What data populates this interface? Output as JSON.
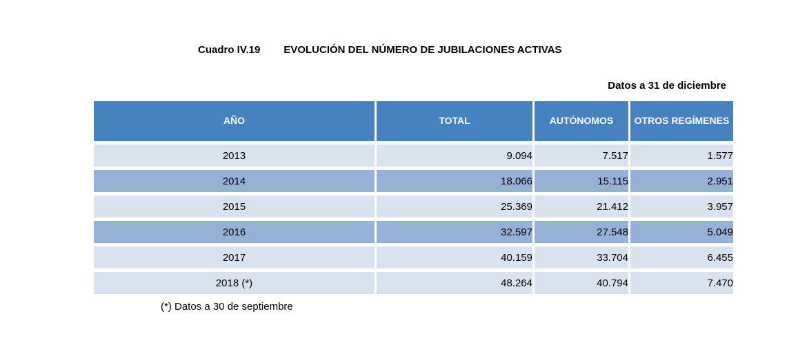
{
  "page": {
    "label": "Cuadro IV.19",
    "title": "EVOLUCIÓN DEL NÚMERO DE JUBILACIONES ACTIVAS",
    "subtitle": "Datos a 31 de diciembre",
    "footnote": "(*) Datos a 30 de septiembre"
  },
  "colors": {
    "header_bg": "#4682bf",
    "row_dark": "#95b1d6",
    "row_light": "#d9e2ef",
    "header_text": "#ffffff",
    "body_text": "#000000"
  },
  "table": {
    "columns": [
      "AÑO",
      "TOTAL",
      "AUTÓNOMOS",
      "OTROS REGÍMENES"
    ],
    "rows": [
      {
        "year": "2013",
        "total": "9.094",
        "autonomos": "7.517",
        "otros": "1.577"
      },
      {
        "year": "2014",
        "total": "18.066",
        "autonomos": "15.115",
        "otros": "2.951"
      },
      {
        "year": "2015",
        "total": "25.369",
        "autonomos": "21.412",
        "otros": "3.957"
      },
      {
        "year": "2016",
        "total": "32.597",
        "autonomos": "27.548",
        "otros": "5.049"
      },
      {
        "year": "2017",
        "total": "40.159",
        "autonomos": "33.704",
        "otros": "6.455"
      },
      {
        "year": "2018 (*)",
        "total": "48.264",
        "autonomos": "40.794",
        "otros": "7.470"
      }
    ]
  },
  "chart_data": {
    "type": "table",
    "title": "EVOLUCIÓN DEL NÚMERO DE JUBILACIONES ACTIVAS",
    "categories": [
      "2013",
      "2014",
      "2015",
      "2016",
      "2017",
      "2018 (*)"
    ],
    "series": [
      {
        "name": "TOTAL",
        "values": [
          9094,
          18066,
          25369,
          32597,
          40159,
          48264
        ]
      },
      {
        "name": "AUTÓNOMOS",
        "values": [
          7517,
          15115,
          21412,
          27548,
          33704,
          40794
        ]
      },
      {
        "name": "OTROS REGÍMENES",
        "values": [
          1577,
          2951,
          3957,
          5049,
          6455,
          7470
        ]
      }
    ],
    "annotations": [
      "Datos a 31 de diciembre",
      "(*) Datos a 30 de septiembre"
    ]
  }
}
